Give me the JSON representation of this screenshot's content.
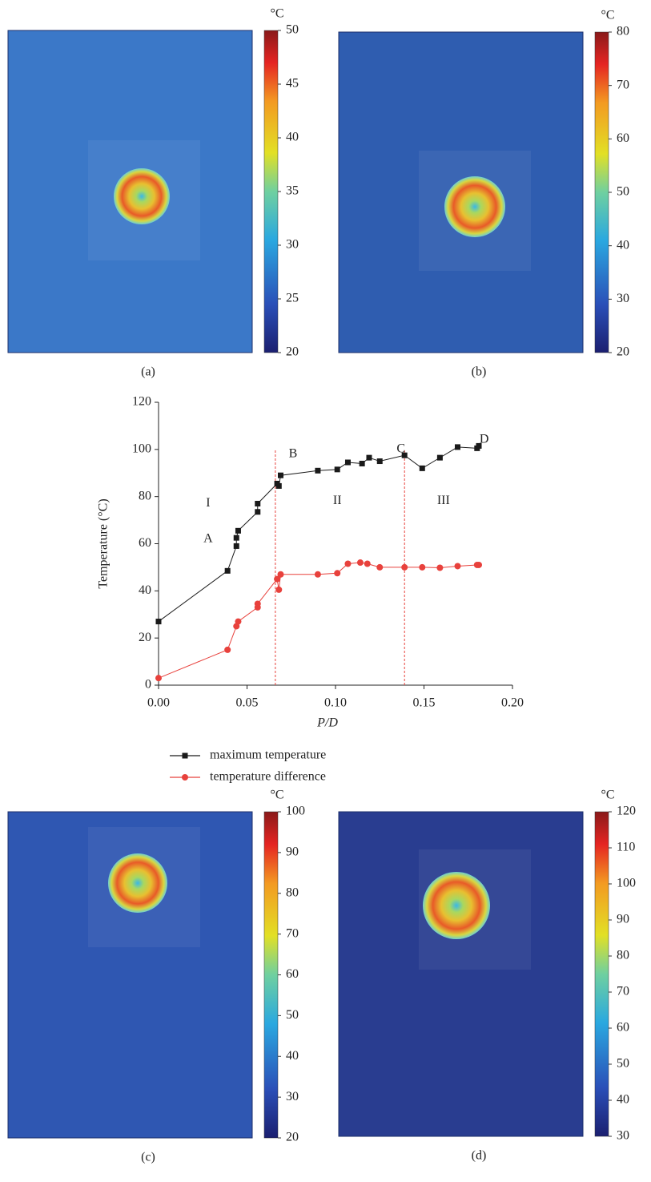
{
  "chart_data": [
    {
      "type": "thermal",
      "caption": "(a)",
      "colorbar_unit": "°C",
      "clim": [
        20,
        50
      ],
      "cticks": [
        20,
        25,
        30,
        35,
        40,
        45,
        50
      ],
      "background": "#3b78c8"
    },
    {
      "type": "thermal",
      "caption": "(b)",
      "colorbar_unit": "°C",
      "clim": [
        20,
        80
      ],
      "cticks": [
        20,
        30,
        40,
        50,
        60,
        70,
        80
      ],
      "background": "#2f5db0"
    },
    {
      "type": "line",
      "ylabel": "Temperature (°C)",
      "xlabel": "P/D",
      "xlim": [
        0,
        0.2
      ],
      "xticks": [
        {
          "value": 0,
          "label": "0.00"
        },
        0.05,
        {
          "value": 0.1,
          "label": "0.10"
        },
        0.15,
        {
          "value": 0.2,
          "label": "0.20"
        }
      ],
      "ylim": [
        0,
        120
      ],
      "yticks": [
        0,
        20,
        40,
        60,
        80,
        100,
        120
      ],
      "reference_lines_x": [
        0.066,
        0.139
      ],
      "reference_color": "#e8413c",
      "annotations": [
        {
          "text": "I",
          "x": 0.028,
          "y": 77
        },
        {
          "text": "A",
          "x": 0.028,
          "y": 62
        },
        {
          "text": "B",
          "x": 0.076,
          "y": 98
        },
        {
          "text": "II",
          "x": 0.101,
          "y": 78
        },
        {
          "text": "C",
          "x": 0.137,
          "y": 100
        },
        {
          "text": "III",
          "x": 0.161,
          "y": 78
        },
        {
          "text": "D",
          "x": 0.184,
          "y": 104
        }
      ],
      "series": [
        {
          "name": "maximum temperature",
          "color": "#1a1a1a",
          "marker": "square",
          "x": [
            0,
            0.039,
            0.044,
            0.044,
            0.045,
            0.056,
            0.056,
            0.067,
            0.068,
            0.069,
            0.09,
            0.101,
            0.107,
            0.115,
            0.119,
            0.125,
            0.139,
            0.149,
            0.159,
            0.169,
            0.18,
            0.181
          ],
          "values": [
            27,
            48.5,
            59,
            62.5,
            65.5,
            73.5,
            77,
            85.5,
            84.5,
            89,
            91,
            91.5,
            94.5,
            94,
            96.5,
            95,
            97.5,
            92,
            96.5,
            101,
            100.5,
            101.5
          ]
        },
        {
          "name": "temperature difference",
          "color": "#e8413c",
          "marker": "circle",
          "x": [
            0,
            0.039,
            0.044,
            0.045,
            0.056,
            0.056,
            0.067,
            0.068,
            0.069,
            0.09,
            0.101,
            0.107,
            0.114,
            0.118,
            0.125,
            0.139,
            0.149,
            0.159,
            0.169,
            0.18,
            0.181
          ],
          "values": [
            3,
            15,
            25,
            27,
            33,
            34.5,
            45,
            40.5,
            47,
            47,
            47.5,
            51.5,
            52,
            51.5,
            50,
            50,
            50,
            49.8,
            50.5,
            51,
            51
          ]
        }
      ]
    },
    {
      "type": "thermal",
      "caption": "(c)",
      "colorbar_unit": "°C",
      "clim": [
        20,
        100
      ],
      "cticks": [
        20,
        30,
        40,
        50,
        60,
        70,
        80,
        90,
        100
      ],
      "background": "#2f57b2"
    },
    {
      "type": "thermal",
      "caption": "(d)",
      "colorbar_unit": "°C",
      "clim": [
        30,
        120
      ],
      "cticks": [
        30,
        40,
        50,
        60,
        70,
        80,
        90,
        100,
        110,
        120
      ],
      "background": "#293d90"
    }
  ]
}
